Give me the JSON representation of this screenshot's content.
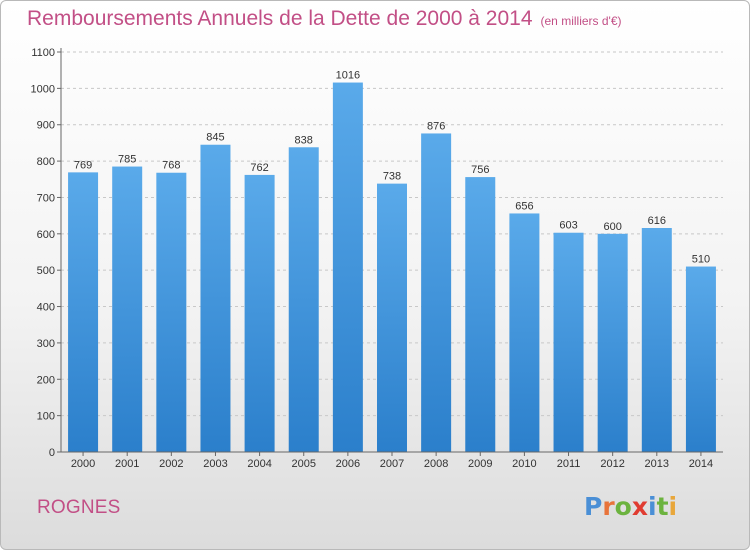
{
  "title": "Remboursements Annuels de la Dette de 2000 à 2014",
  "subtitle": "(en milliers d'€)",
  "commune": "ROGNES",
  "brand": {
    "name": "Proxiti",
    "letters": [
      "P",
      "r",
      "o",
      "x",
      "i",
      "t",
      "i"
    ],
    "letter_colors": [
      "#4a8fd6",
      "#e8743b",
      "#6cb33f",
      "#e03c31",
      "#4a8fd6",
      "#6cb33f",
      "#e8a73b"
    ]
  },
  "colors": {
    "bar_top": "#5aaaea",
    "bar_bottom": "#2b7fcb",
    "grid": "#c8c8c8",
    "axis": "#666666",
    "title": "#c24f86"
  },
  "chart_data": {
    "type": "bar",
    "categories": [
      "2000",
      "2001",
      "2002",
      "2003",
      "2004",
      "2005",
      "2006",
      "2007",
      "2008",
      "2009",
      "2010",
      "2011",
      "2012",
      "2013",
      "2014"
    ],
    "values": [
      769,
      785,
      768,
      845,
      762,
      838,
      1016,
      738,
      876,
      756,
      656,
      603,
      600,
      616,
      510
    ],
    "yticks": [
      0,
      100,
      200,
      300,
      400,
      500,
      600,
      700,
      800,
      900,
      1000,
      1100
    ],
    "ylim": [
      0,
      1100
    ],
    "grid": true,
    "title": "Remboursements Annuels de la Dette de 2000 à 2014",
    "subtitle": "(en milliers d'€)",
    "xlabel": "",
    "ylabel": ""
  }
}
